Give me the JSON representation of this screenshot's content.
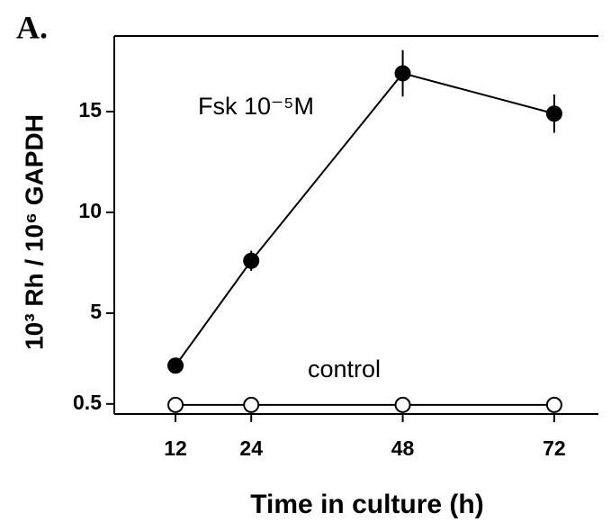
{
  "chart_data": {
    "type": "line",
    "panel_label": "A.",
    "xlabel": "Time in culture (h)",
    "ylabel": "10³ Rh / 10⁶ GAPDH",
    "x": [
      12,
      24,
      48,
      72
    ],
    "series": [
      {
        "name": "Fsk 10⁻⁵M",
        "color": "#000000",
        "marker_fill": "#000000",
        "values": [
          2.4,
          7.6,
          16.9,
          14.9
        ],
        "errors": [
          0,
          0.5,
          1.15,
          0.95
        ]
      },
      {
        "name": "control",
        "color": "#000000",
        "marker_fill": "#ffffff",
        "values": [
          0.45,
          0.45,
          0.45,
          0.45
        ]
      }
    ],
    "xlim": [
      2.3,
      79
    ],
    "ylim": [
      0,
      18.75
    ],
    "xticks": [
      12,
      24,
      48,
      72
    ],
    "yticks": [
      0.5,
      5,
      10,
      15
    ]
  }
}
